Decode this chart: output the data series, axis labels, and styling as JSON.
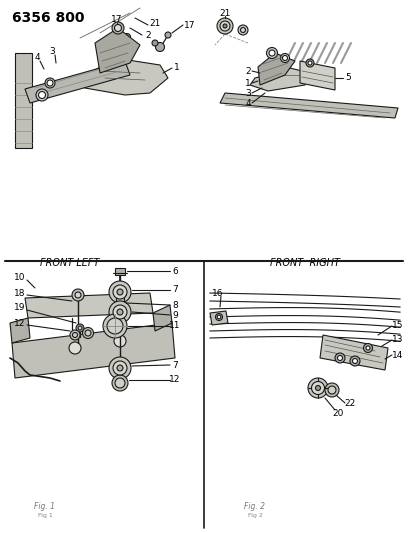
{
  "title": "6356 800",
  "bg_color": "#ffffff",
  "text_color": "#000000",
  "front_left_label": "FRONT LEFT",
  "front_right_label": "FRONT  RIGHT",
  "line_color": "#1a1a1a",
  "line_width": 0.8
}
